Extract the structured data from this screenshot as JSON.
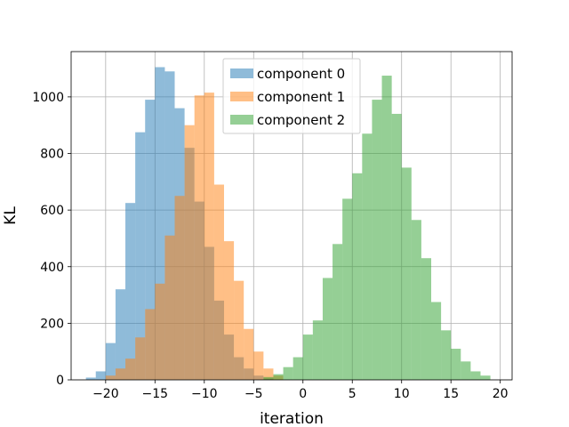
{
  "chart_data": {
    "type": "histogram",
    "title": "",
    "xlabel": "iteration",
    "ylabel": "KL",
    "xlim": [
      -23.5,
      21.2
    ],
    "ylim": [
      0,
      1160
    ],
    "xticks": [
      -20,
      -15,
      -10,
      -5,
      0,
      5,
      10,
      15,
      20
    ],
    "xtick_labels": [
      "−20",
      "−15",
      "−10",
      "−5",
      "0",
      "5",
      "10",
      "15",
      "20"
    ],
    "yticks": [
      0,
      200,
      400,
      600,
      800,
      1000
    ],
    "ytick_labels": [
      "0",
      "200",
      "400",
      "600",
      "800",
      "1000"
    ],
    "grid": true,
    "legend": "top-center",
    "bin_width": 1,
    "series": [
      {
        "name": "component 0",
        "color": "#1f77b4",
        "alpha": 0.5,
        "bins_start": [
          -22,
          -21,
          -20,
          -19,
          -18,
          -17,
          -16,
          -15,
          -14,
          -13,
          -12,
          -11,
          -10,
          -9,
          -8,
          -7,
          -6,
          -5,
          -4
        ],
        "counts": [
          8,
          30,
          130,
          320,
          625,
          875,
          990,
          1105,
          1090,
          960,
          820,
          630,
          470,
          280,
          160,
          80,
          40,
          15,
          5
        ]
      },
      {
        "name": "component 1",
        "color": "#ff7f0e",
        "alpha": 0.5,
        "bins_start": [
          -20,
          -19,
          -18,
          -17,
          -16,
          -15,
          -14,
          -13,
          -12,
          -11,
          -10,
          -9,
          -8,
          -7,
          -6,
          -5,
          -4,
          -3
        ],
        "counts": [
          15,
          40,
          75,
          150,
          250,
          340,
          510,
          650,
          900,
          1005,
          1015,
          690,
          490,
          350,
          180,
          100,
          40,
          15
        ]
      },
      {
        "name": "component 2",
        "color": "#2ca02c",
        "alpha": 0.5,
        "bins_start": [
          -4,
          -3,
          -2,
          -1,
          0,
          1,
          2,
          3,
          4,
          5,
          6,
          7,
          8,
          9,
          10,
          11,
          12,
          13,
          14,
          15,
          16,
          17,
          18
        ],
        "counts": [
          10,
          20,
          45,
          80,
          160,
          210,
          360,
          480,
          640,
          730,
          870,
          990,
          1075,
          940,
          750,
          565,
          430,
          275,
          175,
          110,
          65,
          30,
          15
        ]
      }
    ]
  }
}
